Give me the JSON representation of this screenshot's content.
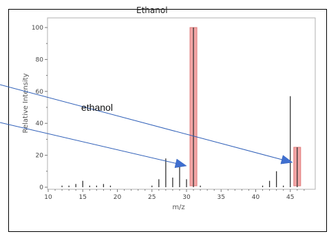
{
  "chart_data": {
    "type": "bar",
    "title": "Ethanol",
    "xlabel": "m/z",
    "ylabel": "Relative Intensity",
    "xlim": [
      10,
      48
    ],
    "ylim": [
      0,
      100
    ],
    "xticks": [
      10,
      15,
      20,
      25,
      30,
      35,
      40,
      45
    ],
    "yticks": [
      0,
      20,
      40,
      60,
      80,
      100
    ],
    "grid": false,
    "annotation": "ethanol",
    "highlight_color": "#f2a5a5",
    "bar_color": "#333333",
    "arrow_color": "#2f5fb8",
    "highlighted_peaks": [
      31,
      46
    ],
    "peaks": [
      {
        "x": 12,
        "y": 1
      },
      {
        "x": 13,
        "y": 1
      },
      {
        "x": 14,
        "y": 2
      },
      {
        "x": 15,
        "y": 4
      },
      {
        "x": 16,
        "y": 1
      },
      {
        "x": 17,
        "y": 1
      },
      {
        "x": 18,
        "y": 2
      },
      {
        "x": 19,
        "y": 1
      },
      {
        "x": 25,
        "y": 1
      },
      {
        "x": 26,
        "y": 5
      },
      {
        "x": 27,
        "y": 18
      },
      {
        "x": 28,
        "y": 6
      },
      {
        "x": 29,
        "y": 15
      },
      {
        "x": 30,
        "y": 5
      },
      {
        "x": 31,
        "y": 100
      },
      {
        "x": 32,
        "y": 1
      },
      {
        "x": 41,
        "y": 1
      },
      {
        "x": 42,
        "y": 4
      },
      {
        "x": 43,
        "y": 10
      },
      {
        "x": 44,
        "y": 1
      },
      {
        "x": 45,
        "y": 57
      },
      {
        "x": 46,
        "y": 25
      }
    ]
  }
}
